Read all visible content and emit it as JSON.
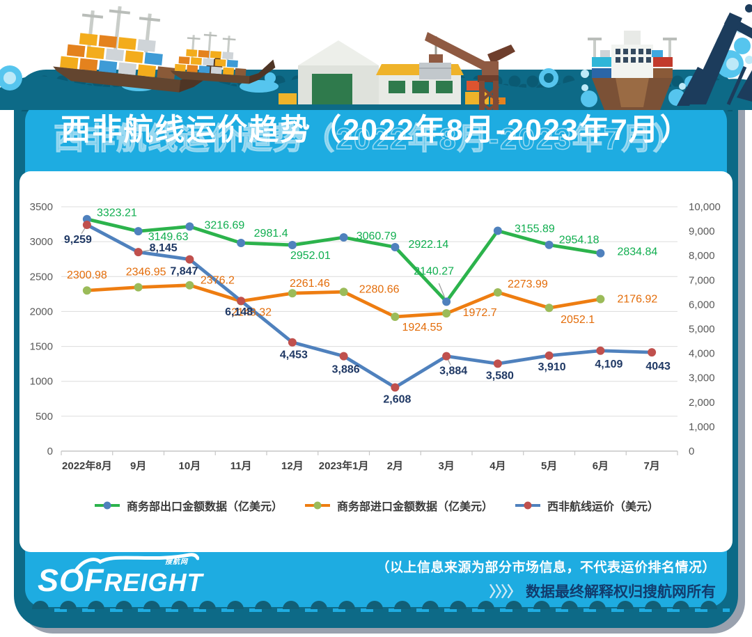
{
  "title": "西非航线运价趋势（2022年8月-2023年7月）",
  "logo": {
    "text_big": "SOF",
    "text_small": "REIGHT",
    "tagline": "搜航网"
  },
  "footnote": {
    "line1": "（以上信息来源为部分市场信息，不代表运价排名情况）",
    "chevrons": "〉〉〉〉",
    "line2": "数据最终解释权归搜航网所有"
  },
  "chart_data": {
    "type": "line",
    "title": "西非航线运价趋势（2022年8月-2023年7月）",
    "categories": [
      "2022年8月",
      "9月",
      "10月",
      "11月",
      "12月",
      "2023年1月",
      "2月",
      "3月",
      "4月",
      "5月",
      "6月",
      "7月"
    ],
    "grid": true,
    "legend_position": "bottom",
    "left_axis": {
      "min": 0,
      "max": 3500,
      "step": 500,
      "ticks": [
        "0",
        "500",
        "1000",
        "1500",
        "2000",
        "2500",
        "3000",
        "3500"
      ]
    },
    "right_axis": {
      "min": 0,
      "max": 10000,
      "step": 1000,
      "ticks": [
        "0",
        "1,000",
        "2,000",
        "3,000",
        "4,000",
        "5,000",
        "6,000",
        "7,000",
        "8,000",
        "9,000",
        "10,000"
      ]
    },
    "series": [
      {
        "name": "商务部出口金额数据（亿美元）",
        "axis": "left",
        "line_color": "#2CB34C",
        "marker_color": "#4F81BD",
        "label_color": "#10AE4F",
        "values": [
          3323.21,
          3149.63,
          3216.69,
          2981.4,
          2952.01,
          3060.79,
          2922.14,
          2140.27,
          3155.89,
          2954.18,
          2834.84
        ],
        "labels": [
          "3323.21",
          "3149.63",
          "3216.69",
          "2981.4",
          "2952.01",
          "3060.79",
          "2922.14",
          "2140.27",
          "3155.89",
          "2954.18",
          "2834.84"
        ],
        "label_offsets": [
          [
            43,
            -9
          ],
          [
            43,
            8
          ],
          [
            50,
            -2
          ],
          [
            43,
            -14
          ],
          [
            26,
            15
          ],
          [
            47,
            -2
          ],
          [
            48,
            -4
          ],
          [
            -18,
            -44
          ],
          [
            53,
            -3
          ],
          [
            43,
            -7
          ],
          [
            53,
            -2
          ]
        ],
        "leader_lines": [
          7
        ]
      },
      {
        "name": "商务部进口金额数据（亿美元）",
        "axis": "left",
        "line_color": "#EE7D11",
        "marker_color": "#9BBB59",
        "label_color": "#E36C09",
        "values": [
          2300.98,
          2346.95,
          2376.2,
          2148.32,
          2261.46,
          2280.66,
          1924.55,
          1972.7,
          2273.99,
          2052.1,
          2176.92
        ],
        "labels": [
          "2300.98",
          "2346.95",
          "2376.2",
          "2148.32",
          "2261.46",
          "2280.66",
          "1924.55",
          "1972.7",
          "2273.99",
          "2052.1",
          "2176.92"
        ],
        "label_offsets": [
          [
            0,
            -22
          ],
          [
            11,
            -22
          ],
          [
            40,
            -7
          ],
          [
            15,
            16
          ],
          [
            25,
            -14
          ],
          [
            51,
            -4
          ],
          [
            39,
            15
          ],
          [
            48,
            -1
          ],
          [
            43,
            -12
          ],
          [
            41,
            17
          ],
          [
            53,
            0
          ]
        ],
        "leader_lines": []
      },
      {
        "name": "西非航线运价（美元）",
        "axis": "right",
        "line_color": "#4F81BD",
        "marker_color": "#C0504D",
        "label_color": "#1F3864",
        "values": [
          9259,
          8145,
          7847,
          6148,
          4453,
          3886,
          2608,
          3884,
          3580,
          3910,
          4109,
          4043
        ],
        "labels": [
          "9,259",
          "8,145",
          "7,847",
          "6,148",
          "4,453",
          "3,886",
          "2,608",
          "3,884",
          "3,580",
          "3,910",
          "4,109",
          "4043"
        ],
        "label_offsets": [
          [
            -13,
            21
          ],
          [
            36,
            -6
          ],
          [
            -8,
            17
          ],
          [
            -3,
            16
          ],
          [
            2,
            18
          ],
          [
            3,
            19
          ],
          [
            3,
            17
          ],
          [
            10,
            21
          ],
          [
            3,
            17
          ],
          [
            4,
            16
          ],
          [
            12,
            19
          ],
          [
            9,
            20
          ]
        ],
        "leader_lines": [
          0,
          1,
          7
        ]
      }
    ]
  }
}
